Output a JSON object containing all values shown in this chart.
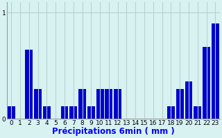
{
  "xlabel": "Précipitations 6min ( mm )",
  "background_color": "#d8f2f2",
  "bar_color": "#0000cc",
  "grid_color": "#b8d0d0",
  "categories": [
    0,
    1,
    2,
    3,
    4,
    5,
    6,
    7,
    8,
    9,
    10,
    11,
    12,
    13,
    14,
    15,
    16,
    17,
    18,
    19,
    20,
    21,
    22,
    23
  ],
  "values": [
    0.12,
    0.0,
    0.65,
    0.28,
    0.12,
    0.0,
    0.12,
    0.12,
    0.28,
    0.12,
    0.28,
    0.28,
    0.28,
    0.0,
    0.0,
    0.0,
    0.0,
    0.0,
    0.12,
    0.28,
    0.35,
    0.12,
    0.68,
    0.9
  ],
  "ylim": [
    0,
    1.1
  ],
  "yticks": [
    0,
    1
  ],
  "xlim": [
    -0.5,
    23.5
  ],
  "tick_fontsize": 6.5,
  "xlabel_fontsize": 8.5,
  "bar_width": 0.85
}
